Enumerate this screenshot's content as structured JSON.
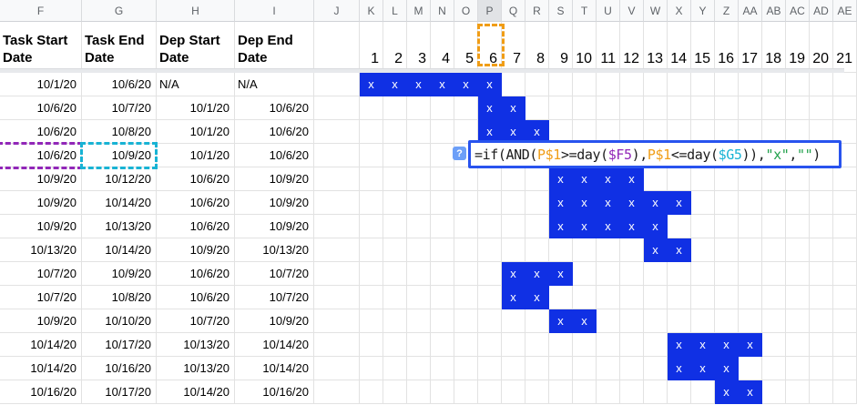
{
  "columns": {
    "letters": [
      "F",
      "G",
      "H",
      "I",
      "J",
      "K",
      "L",
      "M",
      "N",
      "O",
      "P",
      "Q",
      "R",
      "S",
      "T",
      "U",
      "V",
      "W",
      "X",
      "Y",
      "Z",
      "AA",
      "AB",
      "AC",
      "AD",
      "AE"
    ],
    "selected_letter": "P"
  },
  "header_row": {
    "labels": [
      "Task Start Date",
      "Task End Date",
      "Dep Start Date",
      "Dep End Date"
    ],
    "day_numbers": [
      "1",
      "2",
      "3",
      "4",
      "5",
      "6",
      "7",
      "8",
      "9",
      "10",
      "11",
      "12",
      "13",
      "14",
      "15",
      "16",
      "17",
      "18",
      "19",
      "20",
      "21"
    ]
  },
  "x_marker": "x",
  "rows": [
    {
      "task_start": "10/1/20",
      "task_end": "10/6/20",
      "dep_start": "N/A",
      "dep_end": "N/A",
      "bar_days": [
        1,
        6
      ]
    },
    {
      "task_start": "10/6/20",
      "task_end": "10/7/20",
      "dep_start": "10/1/20",
      "dep_end": "10/6/20",
      "bar_days": [
        6,
        7
      ]
    },
    {
      "task_start": "10/6/20",
      "task_end": "10/8/20",
      "dep_start": "10/1/20",
      "dep_end": "10/6/20",
      "bar_days": [
        6,
        8
      ]
    },
    {
      "task_start": "10/6/20",
      "task_end": "10/9/20",
      "dep_start": "10/1/20",
      "dep_end": "10/6/20",
      "bar_days": null,
      "editing": true
    },
    {
      "task_start": "10/9/20",
      "task_end": "10/12/20",
      "dep_start": "10/6/20",
      "dep_end": "10/9/20",
      "bar_days": [
        9,
        12
      ]
    },
    {
      "task_start": "10/9/20",
      "task_end": "10/14/20",
      "dep_start": "10/6/20",
      "dep_end": "10/9/20",
      "bar_days": [
        9,
        14
      ]
    },
    {
      "task_start": "10/9/20",
      "task_end": "10/13/20",
      "dep_start": "10/6/20",
      "dep_end": "10/9/20",
      "bar_days": [
        9,
        13
      ]
    },
    {
      "task_start": "10/13/20",
      "task_end": "10/14/20",
      "dep_start": "10/9/20",
      "dep_end": "10/13/20",
      "bar_days": [
        13,
        14
      ]
    },
    {
      "task_start": "10/7/20",
      "task_end": "10/9/20",
      "dep_start": "10/6/20",
      "dep_end": "10/7/20",
      "bar_days": [
        7,
        9
      ]
    },
    {
      "task_start": "10/7/20",
      "task_end": "10/8/20",
      "dep_start": "10/6/20",
      "dep_end": "10/7/20",
      "bar_days": [
        7,
        8
      ]
    },
    {
      "task_start": "10/9/20",
      "task_end": "10/10/20",
      "dep_start": "10/7/20",
      "dep_end": "10/9/20",
      "bar_days": [
        9,
        10
      ]
    },
    {
      "task_start": "10/14/20",
      "task_end": "10/17/20",
      "dep_start": "10/13/20",
      "dep_end": "10/14/20",
      "bar_days": [
        14,
        17
      ]
    },
    {
      "task_start": "10/14/20",
      "task_end": "10/16/20",
      "dep_start": "10/13/20",
      "dep_end": "10/14/20",
      "bar_days": [
        14,
        16
      ]
    },
    {
      "task_start": "10/16/20",
      "task_end": "10/17/20",
      "dep_start": "10/14/20",
      "dep_end": "10/16/20",
      "bar_days": [
        16,
        17
      ]
    }
  ],
  "formula_editor": {
    "help_icon": "?",
    "formula_full": "=if(AND(P$1>=day($F5),P$1<=day($G5)),\"x\",\"\")",
    "segments": [
      {
        "t": "=if(AND(",
        "c": "default"
      },
      {
        "t": "P$1",
        "c": "orange"
      },
      {
        "t": ">=day(",
        "c": "default"
      },
      {
        "t": "$F5",
        "c": "purple"
      },
      {
        "t": "),",
        "c": "default"
      },
      {
        "t": "P$1",
        "c": "orange"
      },
      {
        "t": "<=day(",
        "c": "default"
      },
      {
        "t": "$G5",
        "c": "cyan"
      },
      {
        "t": ")),",
        "c": "default"
      },
      {
        "t": "\"x\"",
        "c": "green"
      },
      {
        "t": ",",
        "c": "default"
      },
      {
        "t": "\"\"",
        "c": "green"
      },
      {
        "t": ")",
        "c": "default"
      }
    ]
  },
  "colors": {
    "bar_blue": "#1030e4",
    "editor_border": "#2853ee",
    "ref_orange": "#f09d16",
    "ref_purple": "#9127b8",
    "ref_cyan": "#18b3d4",
    "string_green": "#1fa04a",
    "help_icon_bg": "#6c9ff8",
    "header_bg": "#f8f9fa",
    "header_selected_bg": "#e1e3e6",
    "header_text": "#5f6368",
    "grid_line": "#e2e2e2",
    "freeze_band": "#e7e9ec"
  }
}
